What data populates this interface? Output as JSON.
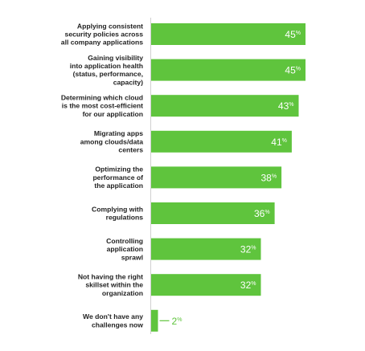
{
  "chart_data": {
    "type": "bar",
    "orientation": "horizontal",
    "categories": [
      [
        "Applying consistent",
        "security policies across",
        "all company applications"
      ],
      [
        "Gaining visibility",
        "into application health",
        "(status, performance,",
        "capacity)"
      ],
      [
        "Determining which cloud",
        "is the most cost-efficient",
        "for our application"
      ],
      [
        "Migrating apps",
        "among clouds/data",
        "centers"
      ],
      [
        "Optimizing the",
        "performance of",
        "the application"
      ],
      [
        "Complying with",
        "regulations"
      ],
      [
        "Controlling",
        "application",
        "sprawl"
      ],
      [
        "Not having the right",
        "skillset within the",
        "organization"
      ],
      [
        "We don't have any",
        "challenges now"
      ]
    ],
    "values": [
      45,
      45,
      43,
      41,
      38,
      36,
      32,
      32,
      2
    ],
    "value_labels": [
      "45",
      "45",
      "43",
      "41",
      "38",
      "36",
      "32",
      "32",
      "2"
    ],
    "value_suffix": "%",
    "bar_color": "#5fc43d",
    "xlim": [
      0,
      45
    ],
    "grid": false,
    "legend": "none"
  }
}
